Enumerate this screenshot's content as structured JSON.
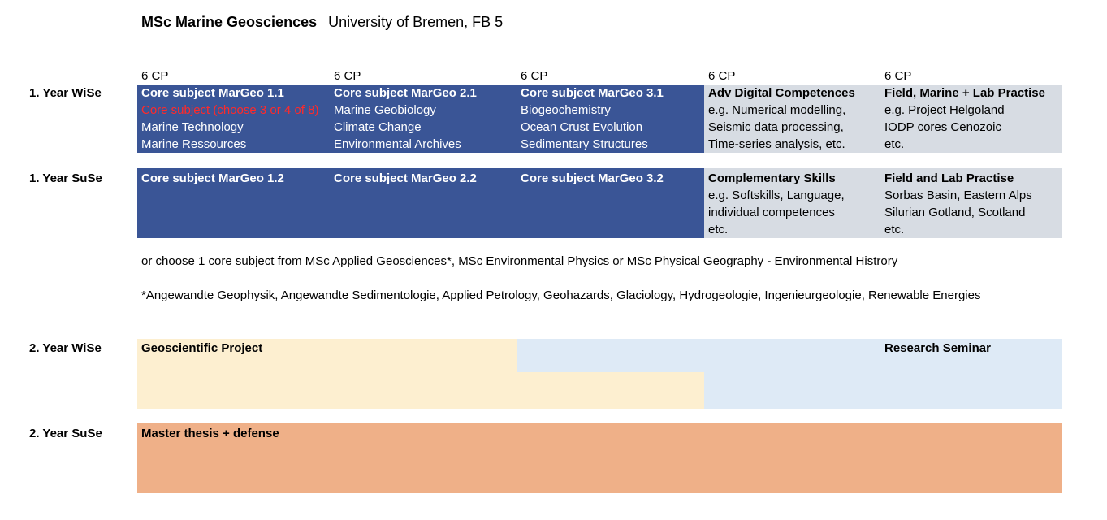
{
  "header": {
    "program": "MSc Marine Geosciences",
    "institution": "University of Bremen, FB 5"
  },
  "credit_labels": [
    "6 CP",
    "6 CP",
    "6 CP",
    "6 CP",
    "6 CP"
  ],
  "rows": {
    "y1_wise": "1. Year  WiSe",
    "y1_suse": "1. Year  SuSe",
    "y2_wise": "2. Year  WiSe",
    "y2_suse": "2. Year  SuSe"
  },
  "y1_wise": {
    "col1": {
      "title": "Core subject  MarGeo 1.1",
      "note": "Core subject (choose 3  or 4 of 8)",
      "lines": [
        "Marine Technology",
        "Marine Ressources"
      ]
    },
    "col2": {
      "title": "Core subject  MarGeo 2.1",
      "lines": [
        "Marine Geobiology",
        "Climate Change",
        "Environmental Archives"
      ]
    },
    "col3": {
      "title": "Core subject  MarGeo 3.1",
      "lines": [
        "Biogeochemistry",
        "Ocean Crust Evolution",
        "Sedimentary Structures"
      ]
    },
    "col4": {
      "title": "Adv Digital Competences",
      "lines": [
        "e.g. Numerical modelling,",
        "Seismic data processing,",
        "Time-series analysis, etc."
      ]
    },
    "col5": {
      "title": "Field, Marine + Lab Practise",
      "lines": [
        "e.g. Project Helgoland",
        "IODP cores Cenozoic",
        "etc."
      ]
    }
  },
  "y1_suse": {
    "col1": {
      "title": "Core subject  MarGeo 1.2"
    },
    "col2": {
      "title": "Core subject  MarGeo 2.2"
    },
    "col3": {
      "title": "Core subject  MarGeo 3.2"
    },
    "col4": {
      "title": "Complementary Skills",
      "lines": [
        "e.g. Softskills, Language,",
        "individual competences",
        "etc."
      ]
    },
    "col5": {
      "title": "Field and Lab Practise",
      "lines": [
        "Sorbas Basin, Eastern Alps",
        "Silurian Gotland, Scotland",
        "etc."
      ]
    }
  },
  "notes": {
    "choose_alt": "or choose 1 core subject from MSc Applied Geosciences*, MSc Environmental Physics or MSc Physical Geography - Environmental Histrory",
    "footnote": "*Angewandte Geophysik, Angewandte Sedimentologie, Applied Petrology, Geohazards, Glaciology, Hydrogeologie, Ingenieurgeologie, Renewable Energies"
  },
  "y2_wise": {
    "project": "Geoscientific Project",
    "seminar": "Research Seminar"
  },
  "y2_suse": {
    "thesis": "Master thesis + defense"
  },
  "colors": {
    "core_blue": "#3a5596",
    "skills_grey": "#d7dce3",
    "project_cream": "#fdefd0",
    "seminar_lightblue": "#deeaf6",
    "thesis_orange": "#efb088",
    "note_red": "#ff2a2a"
  }
}
